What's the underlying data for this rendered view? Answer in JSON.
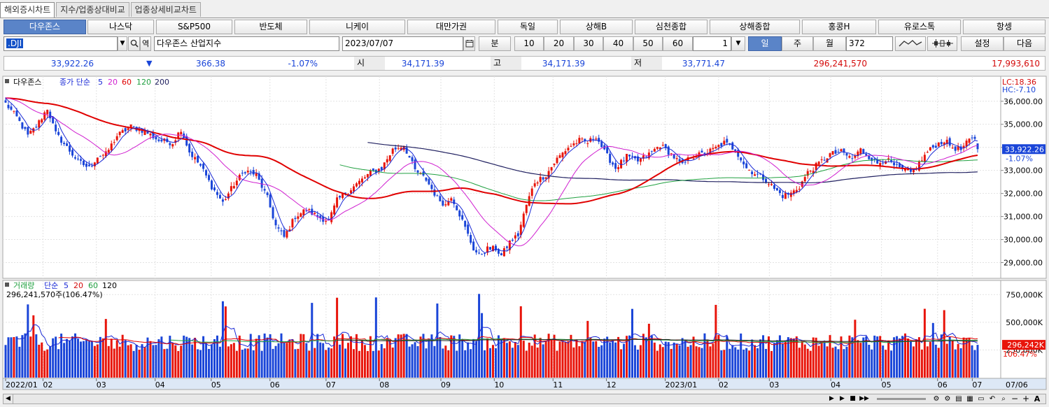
{
  "tabs": [
    "해외증시차트",
    "지수/업종상대비교",
    "업종상세비교차트"
  ],
  "markets": [
    "다우존스",
    "나스닥",
    "S&P500",
    "반도체",
    "니케이",
    "대만가권",
    "독일",
    "상해B",
    "심천종합",
    "상해종합",
    "홍콩H",
    "유로스톡",
    "항셍"
  ],
  "controls": {
    "code": ".DJI",
    "name": "다우존스 산업지수",
    "date": "2023/07/07",
    "min_label": "분",
    "intervals": [
      "10",
      "20",
      "30",
      "40",
      "50",
      "60"
    ],
    "step": "1",
    "day": "일",
    "week": "주",
    "month": "월",
    "count": "372",
    "setting": "설정",
    "next": "다음",
    "history_icon": "yeok"
  },
  "quote": {
    "last": "33,922.26",
    "arrow": "▼",
    "change": "366.38",
    "pct": "-1.07%",
    "open_label": "시",
    "open": "34,171.39",
    "high_label": "고",
    "high": "34,171.39",
    "low_label": "저",
    "low": "33,771.47",
    "volume": "296,241,570",
    "amount": "17,993,610"
  },
  "price_legend": {
    "name": "다우존스",
    "ma_label": "종가 단순",
    "periods": [
      "5",
      "20",
      "60",
      "120",
      "200"
    ]
  },
  "vol_legend": {
    "name": "거래량",
    "ma_label": "단순",
    "periods": [
      "5",
      "20",
      "60",
      "120"
    ],
    "value": "296,241,570주(106.47%)"
  },
  "axis": {
    "lc": "LC:18.36",
    "hc": "HC:-7.10",
    "price_ticks": [
      "36,000.00",
      "35,000.00",
      "34,000.00",
      "33,000.00",
      "32,000.00",
      "31,000.00",
      "30,000.00",
      "29,000.00"
    ],
    "vol_ticks": [
      "750,000K",
      "500,000K",
      "250,000K"
    ],
    "cur_price": "33,922.26",
    "cur_pct": "-1.07%",
    "cur_vol": "296,242K",
    "cur_vol_pct": "106.47%",
    "x_labels": [
      "2022/01",
      "02",
      "03",
      "04",
      "05",
      "06",
      "07",
      "08",
      "09",
      "10",
      "11",
      "12",
      "2023/01",
      "02",
      "03",
      "04",
      "05",
      "06",
      "07"
    ],
    "x_end": "07/06"
  },
  "colors": {
    "up": "#e8140a",
    "down": "#1a45d8",
    "ma5": "#1a2ad6",
    "ma20": "#d020d0",
    "ma60": "#e00000",
    "ma120": "#20a040",
    "ma200": "#202060",
    "accent": "#5a84c8"
  },
  "chart_data": {
    "type": "candlestick",
    "period": "daily",
    "ylim": [
      28500,
      36600
    ],
    "anchors": [
      [
        0,
        35900
      ],
      [
        4,
        35300
      ],
      [
        8,
        34500
      ],
      [
        11,
        34900
      ],
      [
        15,
        35700
      ],
      [
        18,
        34600
      ],
      [
        22,
        34000
      ],
      [
        26,
        33400
      ],
      [
        30,
        33100
      ],
      [
        33,
        33600
      ],
      [
        36,
        33700
      ],
      [
        40,
        34500
      ],
      [
        45,
        34900
      ],
      [
        50,
        34700
      ],
      [
        55,
        34300
      ],
      [
        60,
        34200
      ],
      [
        63,
        34800
      ],
      [
        66,
        33800
      ],
      [
        70,
        33200
      ],
      [
        74,
        32300
      ],
      [
        78,
        31600
      ],
      [
        82,
        32400
      ],
      [
        86,
        33000
      ],
      [
        90,
        32800
      ],
      [
        94,
        31800
      ],
      [
        97,
        30600
      ],
      [
        100,
        30100
      ],
      [
        104,
        31000
      ],
      [
        108,
        31300
      ],
      [
        112,
        31000
      ],
      [
        116,
        30800
      ],
      [
        119,
        31700
      ],
      [
        123,
        32100
      ],
      [
        127,
        32500
      ],
      [
        131,
        32900
      ],
      [
        135,
        33100
      ],
      [
        139,
        33900
      ],
      [
        143,
        34100
      ],
      [
        147,
        33000
      ],
      [
        151,
        32600
      ],
      [
        155,
        31800
      ],
      [
        158,
        31500
      ],
      [
        160,
        31900
      ],
      [
        163,
        31100
      ],
      [
        166,
        30200
      ],
      [
        168,
        29600
      ],
      [
        170,
        29300
      ],
      [
        173,
        29600
      ],
      [
        176,
        29600
      ],
      [
        178,
        29300
      ],
      [
        181,
        29900
      ],
      [
        184,
        30200
      ],
      [
        187,
        31500
      ],
      [
        190,
        32500
      ],
      [
        194,
        32800
      ],
      [
        198,
        33500
      ],
      [
        202,
        34000
      ],
      [
        206,
        34300
      ],
      [
        209,
        34200
      ],
      [
        212,
        34500
      ],
      [
        215,
        33800
      ],
      [
        219,
        33100
      ],
      [
        223,
        33600
      ],
      [
        227,
        33400
      ],
      [
        231,
        33700
      ],
      [
        235,
        34100
      ],
      [
        239,
        33700
      ],
      [
        243,
        33200
      ],
      [
        246,
        33600
      ],
      [
        250,
        33700
      ],
      [
        254,
        33900
      ],
      [
        258,
        34200
      ],
      [
        262,
        33900
      ],
      [
        266,
        33100
      ],
      [
        270,
        32800
      ],
      [
        273,
        32600
      ],
      [
        276,
        32200
      ],
      [
        279,
        31900
      ],
      [
        282,
        32000
      ],
      [
        285,
        32300
      ],
      [
        288,
        32900
      ],
      [
        292,
        33300
      ],
      [
        296,
        33700
      ],
      [
        300,
        33800
      ],
      [
        304,
        33500
      ],
      [
        307,
        33900
      ],
      [
        310,
        33600
      ],
      [
        313,
        33300
      ],
      [
        316,
        33500
      ],
      [
        319,
        33200
      ],
      [
        322,
        33000
      ],
      [
        325,
        32900
      ],
      [
        328,
        33300
      ],
      [
        331,
        33800
      ],
      [
        334,
        34100
      ],
      [
        337,
        34300
      ],
      [
        340,
        34000
      ],
      [
        343,
        33900
      ],
      [
        346,
        34300
      ],
      [
        348,
        34400
      ],
      [
        349,
        33922
      ]
    ],
    "last_bar": {
      "open": 34171.39,
      "high": 34171.39,
      "low": 33771.47,
      "close": 33922.26
    },
    "volume_ylim": [
      0,
      840000
    ],
    "volume_last": 296241570
  }
}
